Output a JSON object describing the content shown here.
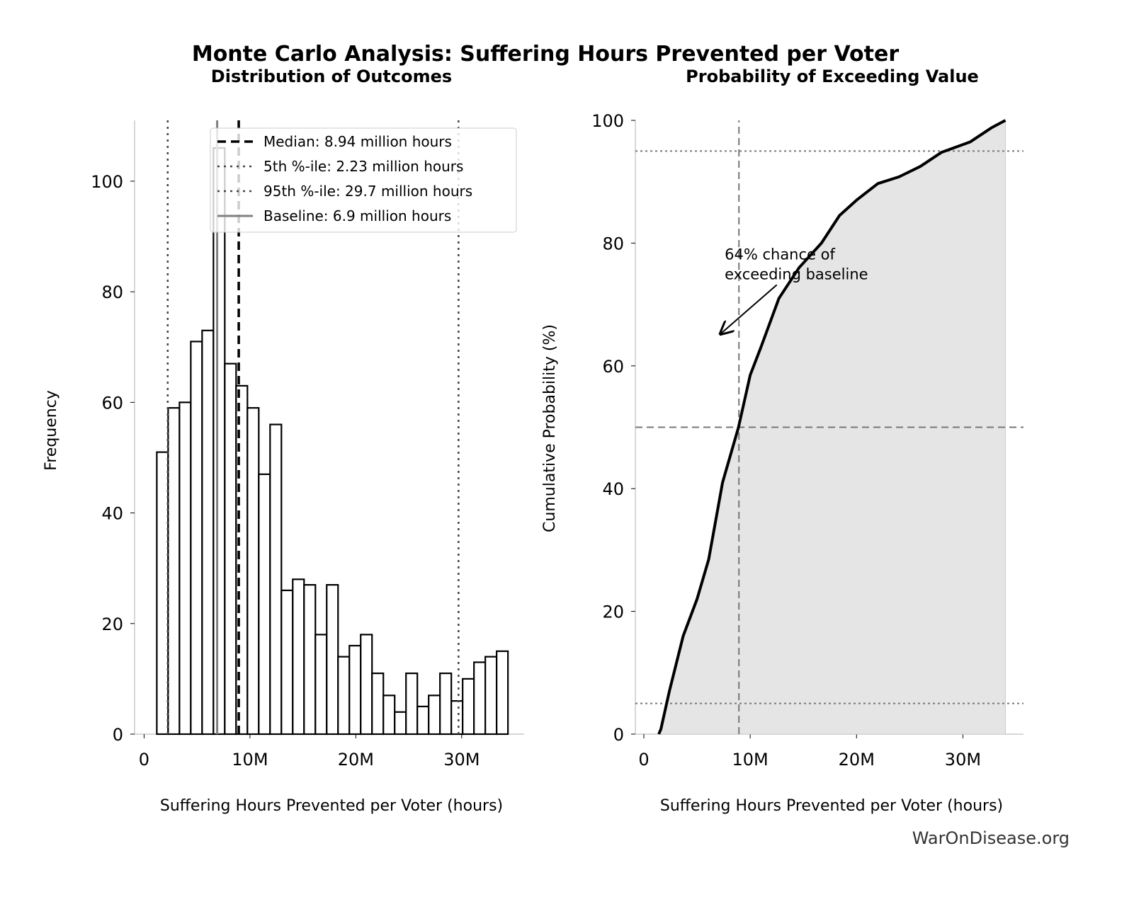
{
  "title": "Monte Carlo Analysis: Suffering Hours Prevented per Voter",
  "watermark": "WarOnDisease.org",
  "chart_data": [
    {
      "type": "bar",
      "subtitle": "Distribution of Outcomes",
      "xlabel": "Suffering Hours Prevented per Voter (hours)",
      "ylabel": "Frequency",
      "xlim": [
        -0.9,
        35.9
      ],
      "ylim": [
        0,
        111
      ],
      "xticks": [
        {
          "v": 0,
          "label": "0"
        },
        {
          "v": 10,
          "label": "10M"
        },
        {
          "v": 20,
          "label": "20M"
        },
        {
          "v": 30,
          "label": "30M"
        }
      ],
      "yticks": [
        {
          "v": 0,
          "label": "0"
        },
        {
          "v": 20,
          "label": "20"
        },
        {
          "v": 40,
          "label": "40"
        },
        {
          "v": 60,
          "label": "60"
        },
        {
          "v": 80,
          "label": "80"
        },
        {
          "v": 100,
          "label": "100"
        }
      ],
      "bin_start": 1.2,
      "bin_width": 1.07,
      "values": [
        51,
        59,
        60,
        71,
        73,
        106,
        67,
        63,
        59,
        47,
        56,
        26,
        28,
        27,
        18,
        27,
        14,
        16,
        18,
        11,
        7,
        4,
        11,
        5,
        7,
        11,
        6,
        10,
        13,
        14,
        15
      ],
      "reference_lines": [
        {
          "x": 8.94,
          "style": "dashed",
          "color": "#000000",
          "label": "Median: 8.94 million hours"
        },
        {
          "x": 2.23,
          "style": "dotted",
          "color": "#444444",
          "label": "5th %-ile: 2.23 million hours"
        },
        {
          "x": 29.7,
          "style": "dotted",
          "color": "#444444",
          "label": "95th %-ile: 29.7 million hours"
        },
        {
          "x": 6.9,
          "style": "solid",
          "color": "#808080",
          "label": "Baseline: 6.9 million hours"
        }
      ],
      "legend": "top-right"
    },
    {
      "type": "area",
      "subtitle": "Probability of Exceeding Value",
      "xlabel": "Suffering Hours Prevented per Voter (hours)",
      "ylabel": "Cumulative Probability (%)",
      "xlim": [
        -0.8,
        35.7
      ],
      "ylim": [
        0,
        100
      ],
      "xticks": [
        {
          "v": 0,
          "label": "0"
        },
        {
          "v": 10,
          "label": "10M"
        },
        {
          "v": 20,
          "label": "20M"
        },
        {
          "v": 30,
          "label": "30M"
        }
      ],
      "yticks": [
        {
          "v": 0,
          "label": "0"
        },
        {
          "v": 20,
          "label": "20"
        },
        {
          "v": 40,
          "label": "40"
        },
        {
          "v": 60,
          "label": "60"
        },
        {
          "v": 80,
          "label": "80"
        },
        {
          "v": 100,
          "label": "100"
        }
      ],
      "x": [
        1.4,
        1.6,
        2.4,
        3.7,
        5.0,
        6.1,
        7.4,
        8.9,
        10.0,
        11.0,
        12.7,
        14.6,
        16.7,
        18.4,
        20.0,
        22.0,
        24.0,
        26.0,
        28.0,
        30.7,
        32.7,
        34.0
      ],
      "y": [
        0,
        0.8,
        7,
        16,
        22,
        28.5,
        41,
        50,
        58.5,
        63,
        71,
        76,
        80,
        84.5,
        87,
        89.7,
        90.8,
        92.5,
        94.8,
        96.5,
        98.8,
        100
      ],
      "hlines": [
        {
          "y": 95,
          "style": "dotted"
        },
        {
          "y": 50,
          "style": "dashed"
        },
        {
          "y": 5,
          "style": "dotted"
        }
      ],
      "vline": {
        "x": 8.94,
        "style": "dashed"
      },
      "annotation": {
        "text_lines": [
          "64% chance of",
          "exceeding baseline"
        ],
        "text_at": [
          7.6,
          75.5
        ],
        "arrow_from": [
          12.5,
          73.2
        ],
        "arrow_to": [
          7.2,
          65.2
        ]
      }
    }
  ]
}
